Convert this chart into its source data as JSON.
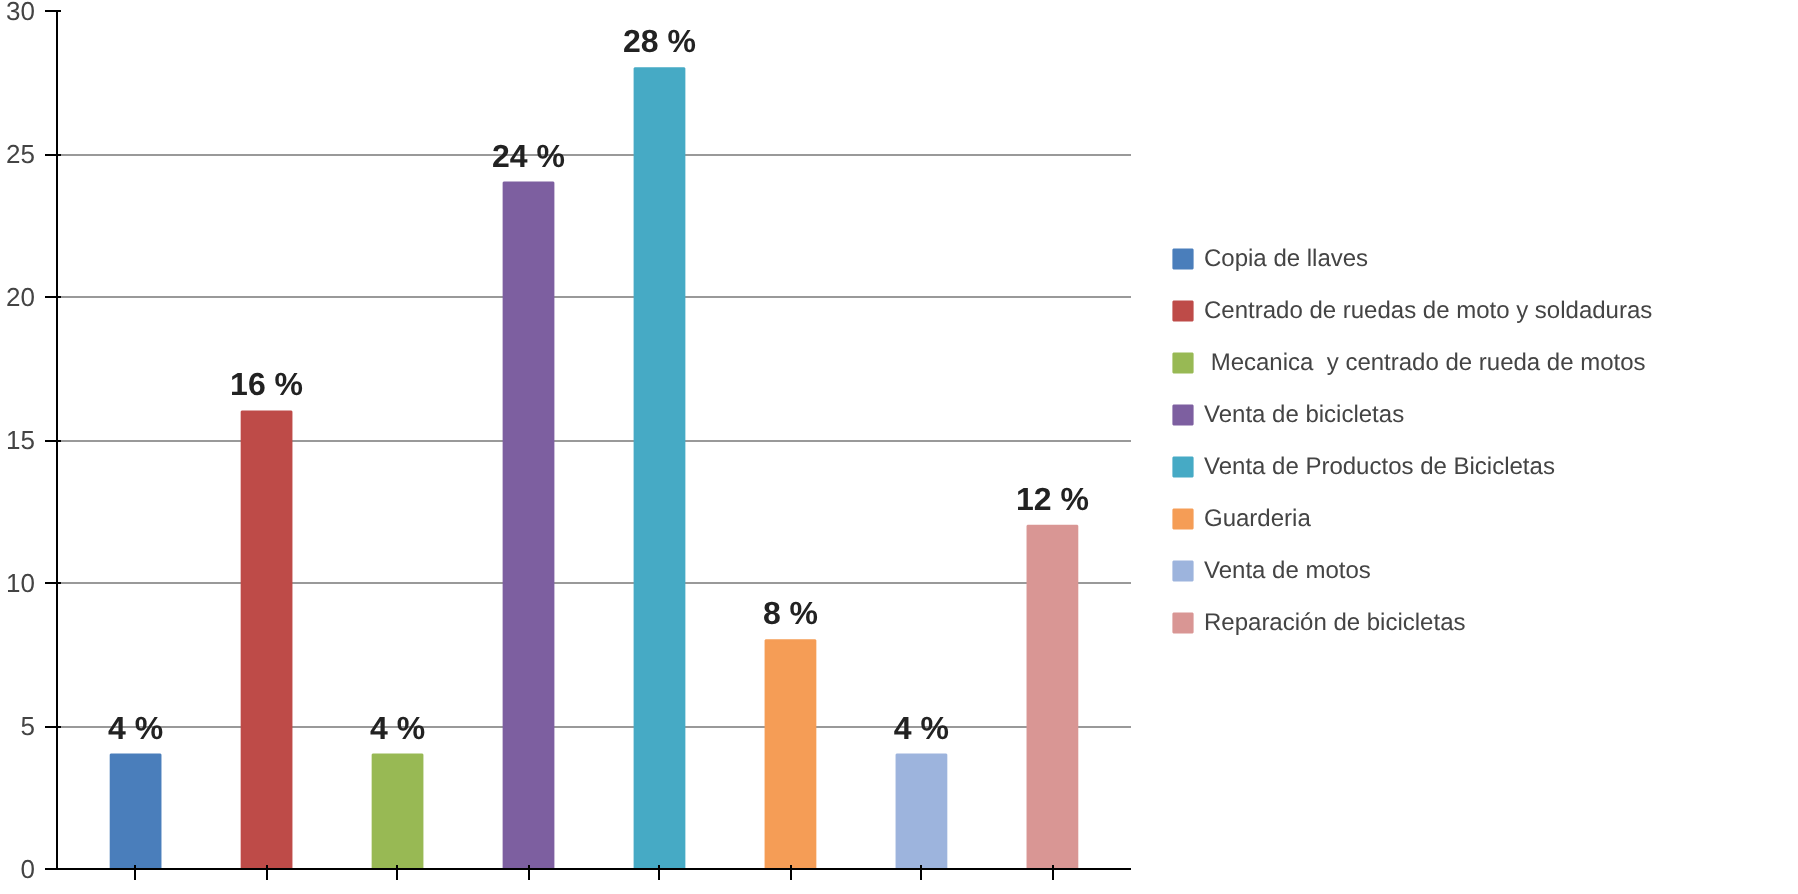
{
  "chart_data": {
    "type": "bar",
    "categories": [
      null,
      null,
      null,
      null,
      null,
      null,
      null,
      null
    ],
    "series": [
      {
        "name": "Copia de llaves",
        "color": "#4a7ebb",
        "values": [
          4,
          null,
          null,
          null,
          null,
          null,
          null,
          null
        ]
      },
      {
        "name": "Centrado de ruedas de moto y soldaduras",
        "color": "#be4b48",
        "values": [
          null,
          16,
          null,
          null,
          null,
          null,
          null,
          null
        ]
      },
      {
        "name": " Mecanica  y centrado de rueda de motos",
        "color": "#98b954",
        "values": [
          null,
          null,
          4,
          null,
          null,
          null,
          null,
          null
        ]
      },
      {
        "name": "Venta de bicicletas",
        "color": "#7d5fa0",
        "values": [
          null,
          null,
          null,
          24,
          null,
          null,
          null,
          null
        ]
      },
      {
        "name": "Venta de Productos de Bicicletas",
        "color": "#46aac5",
        "values": [
          null,
          null,
          null,
          null,
          28,
          null,
          null,
          null
        ]
      },
      {
        "name": "Guarderia",
        "color": "#f59d56",
        "values": [
          null,
          null,
          null,
          null,
          null,
          8,
          null,
          null
        ]
      },
      {
        "name": "Venta de motos",
        "color": "#9db4dd",
        "values": [
          null,
          null,
          null,
          null,
          null,
          null,
          4,
          null
        ]
      },
      {
        "name": "Reparación de bicicletas",
        "color": "#d99694",
        "values": [
          null,
          null,
          null,
          null,
          null,
          null,
          null,
          12
        ]
      }
    ],
    "value_labels": [
      "4 %",
      "16 %",
      "4 %",
      "24 %",
      "28 %",
      "8 %",
      "4 %",
      "12 %"
    ],
    "ylim": [
      0,
      30
    ],
    "yticks": [
      0,
      5,
      10,
      15,
      20,
      25,
      30
    ],
    "grid": "y",
    "legend": "right",
    "tick_labels": "y"
  }
}
